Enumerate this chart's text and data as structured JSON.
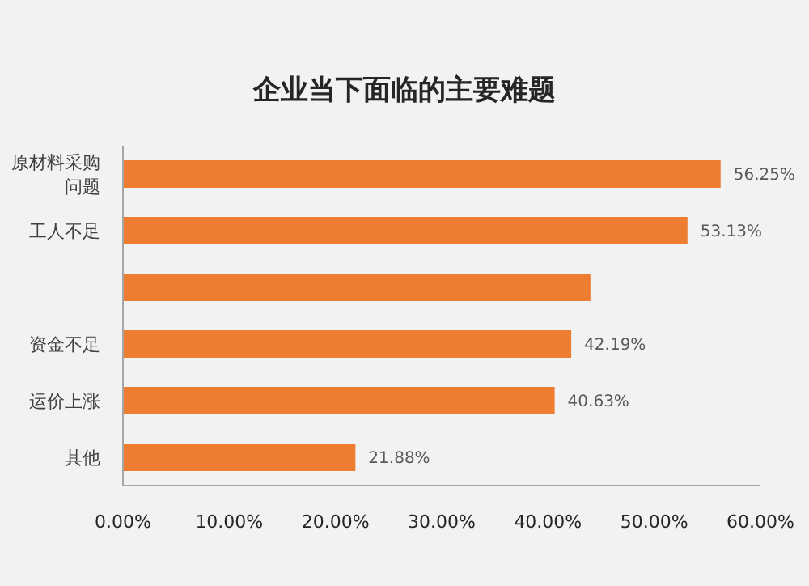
{
  "chart_data": {
    "type": "bar",
    "orientation": "horizontal",
    "title": "企业当下面临的主要难题",
    "categories": [
      "原材料采购问题",
      "工人不足",
      null,
      "资金不足",
      "运价上涨",
      "其他"
    ],
    "values": [
      56.25,
      53.13,
      44,
      42.19,
      40.63,
      21.88
    ],
    "value_labels": [
      "56.25%",
      "53.13%",
      null,
      "42.19%",
      "40.63%",
      "21.88%"
    ],
    "color": "#ed7d31",
    "xlim": [
      0,
      60
    ],
    "xticks": [
      {
        "value": 0,
        "label": "0.00%"
      },
      {
        "value": 10,
        "label": "10.00%"
      },
      {
        "value": 20,
        "label": "20.00%"
      },
      {
        "value": 30,
        "label": "30.00%"
      },
      {
        "value": 40,
        "label": "40.00%"
      },
      {
        "value": 50,
        "label": "50.00%"
      },
      {
        "value": 60,
        "label": "60.00%"
      }
    ],
    "grid": false,
    "legend": false
  }
}
